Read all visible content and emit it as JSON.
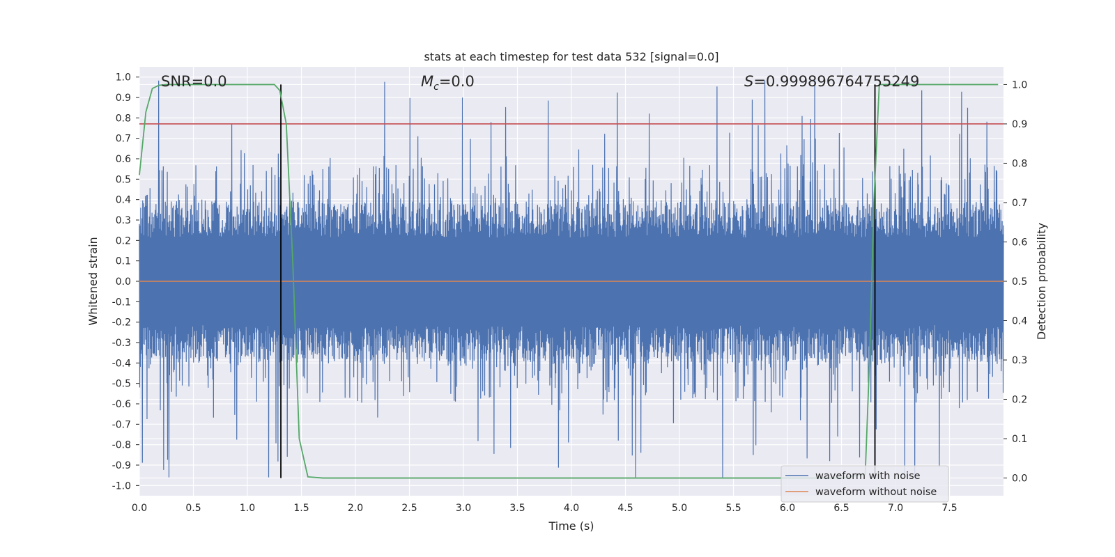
{
  "chart_data": {
    "type": "line",
    "title": "stats at each timestep for test data 532 [signal=0.0]",
    "xlabel": "Time (s)",
    "ylabel": "Whitened strain",
    "y2label": "Detection probability",
    "xlim": [
      0.0,
      8.0
    ],
    "ylim": [
      -1.05,
      1.05
    ],
    "y2lim": [
      -0.045,
      1.045
    ],
    "x_ticks": [
      "0.0",
      "0.5",
      "1.0",
      "1.5",
      "2.0",
      "2.5",
      "3.0",
      "3.5",
      "4.0",
      "4.5",
      "5.0",
      "5.5",
      "6.0",
      "6.5",
      "7.0",
      "7.5"
    ],
    "y_ticks": [
      "1.0",
      "0.9",
      "0.8",
      "0.7",
      "0.6",
      "0.5",
      "0.4",
      "0.3",
      "0.2",
      "0.1",
      "0.0",
      "-0.1",
      "-0.2",
      "-0.3",
      "-0.4",
      "-0.5",
      "-0.6",
      "-0.7",
      "-0.8",
      "-0.9",
      "-1.0"
    ],
    "y2_ticks": [
      "1.0",
      "0.9",
      "0.8",
      "0.7",
      "0.6",
      "0.5",
      "0.4",
      "0.3",
      "0.2",
      "0.1",
      "0.0"
    ],
    "grid": true,
    "legend_placement": "lower-right",
    "annotations": {
      "snr": "SNR=0.0",
      "mc_symbol": "M",
      "mc_sub": "c",
      "mc_value": "=0.0",
      "s_symbol": "S",
      "s_value": "=0.999896764755249"
    },
    "series": [
      {
        "name": "waveform with noise",
        "color": "#4c72b0",
        "description_type": "noise",
        "amplitude_core": 0.39,
        "amplitude_max": 1.0
      },
      {
        "name": "waveform without noise",
        "color": "#dd8452",
        "values_constant": 0.0
      }
    ],
    "detection_probability": {
      "color": "#55a868",
      "x": [
        0.0,
        0.06,
        0.12,
        0.18,
        0.25,
        0.5,
        0.8,
        1.0,
        1.1,
        1.25,
        1.3,
        1.36,
        1.42,
        1.48,
        1.56,
        1.7,
        2.5,
        4.0,
        5.0,
        6.0,
        6.5,
        6.72,
        6.76,
        6.8,
        6.85,
        6.9,
        7.3,
        7.95
      ],
      "y": [
        0.77,
        0.93,
        0.99,
        0.998,
        1.0,
        1.0,
        1.0,
        1.0,
        1.0,
        1.0,
        0.985,
        0.9,
        0.55,
        0.1,
        0.003,
        0.0,
        0.0,
        0.0,
        0.0,
        0.0,
        0.0,
        0.01,
        0.3,
        0.7,
        1.0,
        1.0,
        1.0,
        1.0
      ]
    },
    "threshold": {
      "value": 0.9,
      "color": "#c44e52"
    },
    "vertical_markers": {
      "x": [
        1.31,
        6.81
      ],
      "color": "#000000"
    }
  }
}
